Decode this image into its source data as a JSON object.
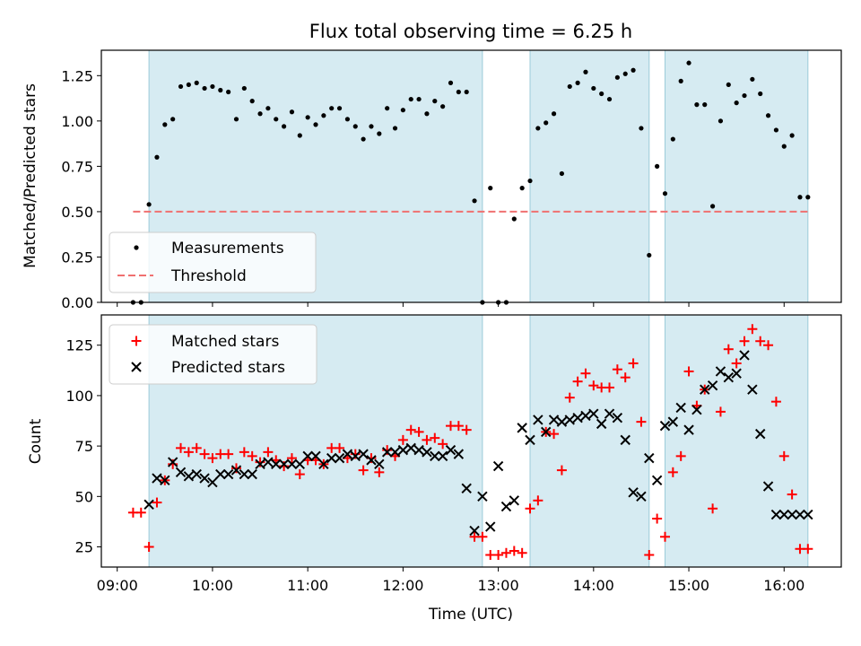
{
  "title": "Flux total observing time = 6.25 h",
  "chart_data": [
    {
      "type": "scatter",
      "title": "Flux total observing time = 6.25 h",
      "xlabel": "",
      "ylabel": "Matched/Predicted stars",
      "xlim": [
        "08:50",
        "16:36"
      ],
      "ylim": [
        0,
        1.39
      ],
      "y_ticks": [
        0.0,
        0.25,
        0.5,
        0.75,
        1.0,
        1.25
      ],
      "y_tick_labels": [
        "0.00",
        "0.25",
        "0.50",
        "0.75",
        "1.00",
        "1.25"
      ],
      "legend": {
        "placement": "lower-left",
        "entries": [
          "Measurements",
          "Threshold"
        ]
      },
      "shaded_intervals": [
        [
          "09:20",
          "12:50"
        ],
        [
          "13:20",
          "14:35"
        ],
        [
          "14:45",
          "16:15"
        ]
      ],
      "threshold": {
        "name": "Threshold",
        "value": 0.5,
        "x_range": [
          "09:10",
          "16:15"
        ],
        "color": "#f07070"
      },
      "series": [
        {
          "name": "Measurements",
          "color": "#000000",
          "x": [
            "09:10",
            "09:15",
            "09:20",
            "09:25",
            "09:30",
            "09:35",
            "09:40",
            "09:45",
            "09:50",
            "09:55",
            "10:00",
            "10:05",
            "10:10",
            "10:15",
            "10:20",
            "10:25",
            "10:30",
            "10:35",
            "10:40",
            "10:45",
            "10:50",
            "10:55",
            "11:00",
            "11:05",
            "11:10",
            "11:15",
            "11:20",
            "11:25",
            "11:30",
            "11:35",
            "11:40",
            "11:45",
            "11:50",
            "11:55",
            "12:00",
            "12:05",
            "12:10",
            "12:15",
            "12:20",
            "12:25",
            "12:30",
            "12:35",
            "12:40",
            "12:45",
            "12:50",
            "12:55",
            "13:00",
            "13:05",
            "13:10",
            "13:15",
            "13:20",
            "13:25",
            "13:30",
            "13:35",
            "13:40",
            "13:45",
            "13:50",
            "13:55",
            "14:00",
            "14:05",
            "14:10",
            "14:15",
            "14:20",
            "14:25",
            "14:30",
            "14:35",
            "14:40",
            "14:45",
            "14:50",
            "14:55",
            "15:00",
            "15:05",
            "15:10",
            "15:15",
            "15:20",
            "15:25",
            "15:30",
            "15:35",
            "15:40",
            "15:45",
            "15:50",
            "15:55",
            "16:00",
            "16:05",
            "16:10",
            "16:15"
          ],
          "y": [
            0.0,
            0.0,
            0.54,
            0.8,
            0.98,
            1.01,
            1.19,
            1.2,
            1.21,
            1.18,
            1.19,
            1.17,
            1.16,
            1.01,
            1.18,
            1.11,
            1.04,
            1.07,
            1.01,
            0.97,
            1.05,
            0.92,
            1.02,
            0.98,
            1.03,
            1.07,
            1.07,
            1.01,
            0.97,
            0.9,
            0.97,
            0.93,
            1.07,
            0.96,
            1.06,
            1.12,
            1.12,
            1.04,
            1.11,
            1.08,
            1.21,
            1.16,
            1.16,
            0.56,
            0.0,
            0.63,
            0.0,
            0.0,
            0.46,
            0.63,
            0.67,
            0.96,
            0.99,
            1.04,
            0.71,
            1.19,
            1.21,
            1.27,
            1.18,
            1.15,
            1.12,
            1.24,
            1.26,
            1.28,
            0.96,
            0.26,
            0.75,
            0.6,
            0.9,
            1.22,
            1.32,
            1.09,
            1.09,
            0.53,
            1.0,
            1.2,
            1.1,
            1.14,
            1.23,
            1.15,
            1.03,
            0.95,
            0.86,
            0.92,
            0.58,
            0.58
          ]
        }
      ]
    },
    {
      "type": "scatter",
      "title": "",
      "xlabel": "Time (UTC)",
      "ylabel": "Count",
      "xlim": [
        "08:50",
        "16:36"
      ],
      "ylim": [
        15,
        140
      ],
      "x_ticks": [
        "09:00",
        "10:00",
        "11:00",
        "12:00",
        "13:00",
        "14:00",
        "15:00",
        "16:00"
      ],
      "y_ticks": [
        25,
        50,
        75,
        100,
        125
      ],
      "y_tick_labels": [
        "25",
        "50",
        "75",
        "100",
        "125"
      ],
      "legend": {
        "placement": "top-left",
        "entries": [
          "Matched stars",
          "Predicted stars"
        ]
      },
      "shaded_intervals": [
        [
          "09:20",
          "12:50"
        ],
        [
          "13:20",
          "14:35"
        ],
        [
          "14:45",
          "16:15"
        ]
      ],
      "series": [
        {
          "name": "Matched stars",
          "marker": "+",
          "color": "#ff0000",
          "x": [
            "09:10",
            "09:15",
            "09:20",
            "09:25",
            "09:30",
            "09:35",
            "09:40",
            "09:45",
            "09:50",
            "09:55",
            "10:00",
            "10:05",
            "10:10",
            "10:15",
            "10:20",
            "10:25",
            "10:30",
            "10:35",
            "10:40",
            "10:45",
            "10:50",
            "10:55",
            "11:00",
            "11:05",
            "11:10",
            "11:15",
            "11:20",
            "11:25",
            "11:30",
            "11:35",
            "11:40",
            "11:45",
            "11:50",
            "11:55",
            "12:00",
            "12:05",
            "12:10",
            "12:15",
            "12:20",
            "12:25",
            "12:30",
            "12:35",
            "12:40",
            "12:45",
            "12:50",
            "12:55",
            "13:00",
            "13:05",
            "13:10",
            "13:15",
            "13:20",
            "13:25",
            "13:30",
            "13:35",
            "13:40",
            "13:45",
            "13:50",
            "13:55",
            "14:00",
            "14:05",
            "14:10",
            "14:15",
            "14:20",
            "14:25",
            "14:30",
            "14:35",
            "14:40",
            "14:45",
            "14:50",
            "14:55",
            "15:00",
            "15:05",
            "15:10",
            "15:15",
            "15:20",
            "15:25",
            "15:30",
            "15:35",
            "15:40",
            "15:45",
            "15:50",
            "15:55",
            "16:00",
            "16:05",
            "16:10",
            "16:15"
          ],
          "y": [
            42,
            42,
            25,
            47,
            58,
            66,
            74,
            72,
            74,
            71,
            69,
            71,
            71,
            64,
            72,
            70,
            67,
            72,
            68,
            65,
            69,
            61,
            68,
            68,
            66,
            74,
            74,
            69,
            71,
            63,
            69,
            62,
            73,
            70,
            78,
            83,
            82,
            78,
            79,
            76,
            85,
            85,
            83,
            30,
            30,
            21,
            21,
            22,
            23,
            22,
            44,
            48,
            82,
            81,
            63,
            99,
            107,
            111,
            105,
            104,
            104,
            113,
            109,
            116,
            87,
            21,
            39,
            30,
            62,
            70,
            112,
            95,
            103,
            44,
            92,
            123,
            116,
            127,
            133,
            127,
            125,
            97,
            70,
            51,
            24,
            24
          ]
        },
        {
          "name": "Predicted stars",
          "marker": "x",
          "color": "#000000",
          "x": [
            "09:20",
            "09:25",
            "09:30",
            "09:35",
            "09:40",
            "09:45",
            "09:50",
            "09:55",
            "10:00",
            "10:05",
            "10:10",
            "10:15",
            "10:20",
            "10:25",
            "10:30",
            "10:35",
            "10:40",
            "10:45",
            "10:50",
            "10:55",
            "11:00",
            "11:05",
            "11:10",
            "11:15",
            "11:20",
            "11:25",
            "11:30",
            "11:35",
            "11:40",
            "11:45",
            "11:50",
            "11:55",
            "12:00",
            "12:05",
            "12:10",
            "12:15",
            "12:20",
            "12:25",
            "12:30",
            "12:35",
            "12:40",
            "12:45",
            "12:50",
            "12:55",
            "13:00",
            "13:05",
            "13:10",
            "13:15",
            "13:20",
            "13:25",
            "13:30",
            "13:35",
            "13:40",
            "13:45",
            "13:50",
            "13:55",
            "14:00",
            "14:05",
            "14:10",
            "14:15",
            "14:20",
            "14:25",
            "14:30",
            "14:35",
            "14:40",
            "14:45",
            "14:50",
            "14:55",
            "15:00",
            "15:05",
            "15:10",
            "15:15",
            "15:20",
            "15:25",
            "15:30",
            "15:35",
            "15:40",
            "15:45",
            "15:50",
            "15:55",
            "16:00",
            "16:05",
            "16:10",
            "16:15"
          ],
          "y": [
            46,
            59,
            58,
            67,
            62,
            60,
            61,
            59,
            57,
            61,
            61,
            63,
            61,
            61,
            66,
            67,
            66,
            66,
            66,
            66,
            70,
            70,
            66,
            69,
            69,
            71,
            70,
            71,
            68,
            66,
            72,
            72,
            73,
            74,
            73,
            72,
            70,
            70,
            73,
            71,
            54,
            33,
            50,
            35,
            65,
            45,
            48,
            84,
            78,
            88,
            82,
            88,
            87,
            88,
            89,
            90,
            91,
            86,
            91,
            89,
            78,
            52,
            50,
            69,
            58,
            85,
            87,
            94,
            83,
            93,
            103,
            105,
            112,
            109,
            111,
            120,
            103,
            81,
            55,
            41,
            41,
            41,
            41,
            41
          ]
        }
      ]
    }
  ]
}
